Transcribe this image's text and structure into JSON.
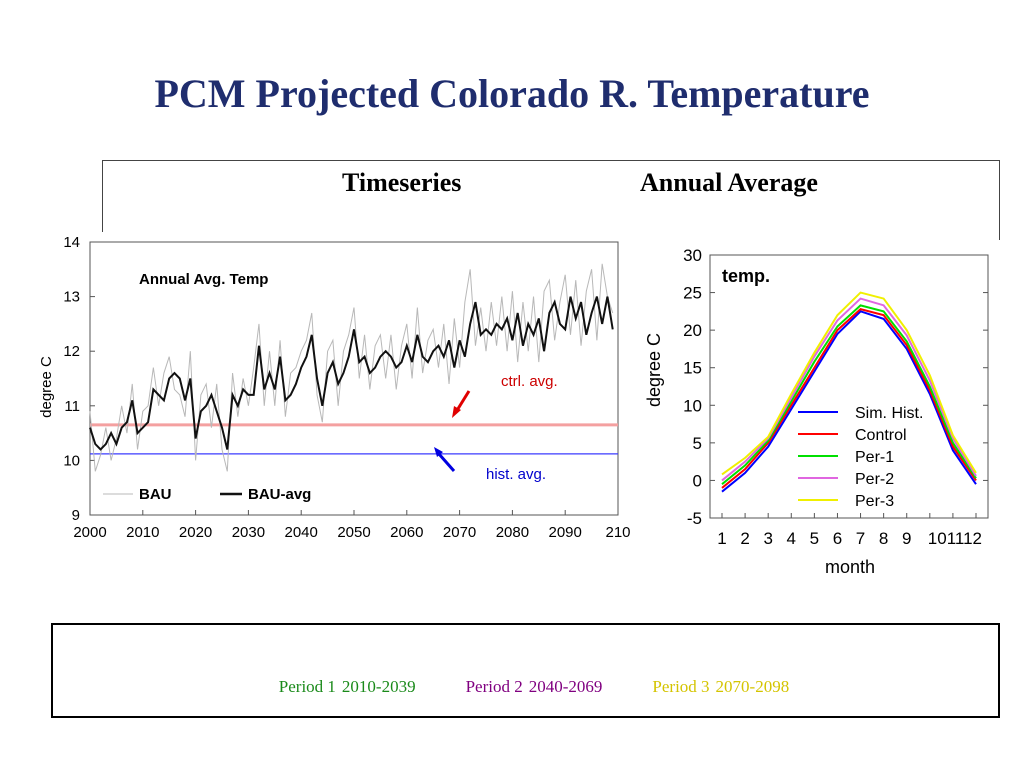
{
  "slide": {
    "title": "PCM Projected Colorado R. Temperature",
    "header_left": "Timeseries",
    "header_right": "Annual Average"
  },
  "colors": {
    "title": "#1f2d6e",
    "ctrl_line": "#f4a0a0",
    "hist_line": "#3b3bff",
    "period1": "#1a8a1a",
    "period2": "#800080",
    "period3": "#d4c400"
  },
  "footer": {
    "periods": [
      {
        "name": "Period 1",
        "range": "2010-2039",
        "color": "#1a8a1a"
      },
      {
        "name": "Period 2",
        "range": "2040-2069",
        "color": "#800080"
      },
      {
        "name": "Period 3",
        "range": "2070-2098",
        "color": "#d4c400"
      }
    ]
  },
  "chart_data": [
    {
      "type": "line",
      "title": "Annual Avg. Temp",
      "xlabel": "",
      "ylabel": "degree C",
      "xlim": [
        2000,
        2100
      ],
      "ylim": [
        9,
        14
      ],
      "x_ticks": [
        "2000",
        "2010",
        "2020",
        "2030",
        "2040",
        "2050",
        "2060",
        "2070",
        "2080",
        "2090",
        "210"
      ],
      "y_ticks": [
        "9",
        "10",
        "11",
        "12",
        "13",
        "14"
      ],
      "legend": [
        "BAU",
        "BAU-avg"
      ],
      "legend_position": "bottom-left",
      "annotations": [
        {
          "text": "ctrl. avg.",
          "color": "#cc0000"
        },
        {
          "text": "hist. avg.",
          "color": "#0000cc"
        }
      ],
      "reference_lines": [
        {
          "name": "ctrl. avg.",
          "y": 10.65,
          "color": "#f4a0a0"
        },
        {
          "name": "hist. avg.",
          "y": 10.12,
          "color": "#3b3bff"
        }
      ],
      "series": [
        {
          "name": "BAU-avg",
          "x": [
            2000,
            2001,
            2002,
            2003,
            2004,
            2005,
            2006,
            2007,
            2008,
            2009,
            2010,
            2011,
            2012,
            2013,
            2014,
            2015,
            2016,
            2017,
            2018,
            2019,
            2020,
            2021,
            2022,
            2023,
            2024,
            2025,
            2026,
            2027,
            2028,
            2029,
            2030,
            2031,
            2032,
            2033,
            2034,
            2035,
            2036,
            2037,
            2038,
            2039,
            2040,
            2041,
            2042,
            2043,
            2044,
            2045,
            2046,
            2047,
            2048,
            2049,
            2050,
            2051,
            2052,
            2053,
            2054,
            2055,
            2056,
            2057,
            2058,
            2059,
            2060,
            2061,
            2062,
            2063,
            2064,
            2065,
            2066,
            2067,
            2068,
            2069,
            2070,
            2071,
            2072,
            2073,
            2074,
            2075,
            2076,
            2077,
            2078,
            2079,
            2080,
            2081,
            2082,
            2083,
            2084,
            2085,
            2086,
            2087,
            2088,
            2089,
            2090,
            2091,
            2092,
            2093,
            2094,
            2095,
            2096,
            2097,
            2098,
            2099
          ],
          "values": [
            10.6,
            10.3,
            10.2,
            10.3,
            10.5,
            10.3,
            10.6,
            10.7,
            11.1,
            10.5,
            10.6,
            10.7,
            11.3,
            11.2,
            11.1,
            11.5,
            11.6,
            11.5,
            11.1,
            11.5,
            10.4,
            10.9,
            11.0,
            11.2,
            10.9,
            10.6,
            10.2,
            11.2,
            11.0,
            11.3,
            11.2,
            11.2,
            12.1,
            11.3,
            11.6,
            11.3,
            11.9,
            11.1,
            11.2,
            11.4,
            11.7,
            11.9,
            12.3,
            11.5,
            11.0,
            11.6,
            11.8,
            11.4,
            11.6,
            11.9,
            12.4,
            11.8,
            11.9,
            11.6,
            11.7,
            11.9,
            12.0,
            11.9,
            11.7,
            11.8,
            12.1,
            11.8,
            12.3,
            11.9,
            11.8,
            12.0,
            12.1,
            11.9,
            12.2,
            11.7,
            12.2,
            11.9,
            12.5,
            12.9,
            12.3,
            12.4,
            12.3,
            12.5,
            12.4,
            12.6,
            12.2,
            12.7,
            12.1,
            12.5,
            12.3,
            12.6,
            12.0,
            12.7,
            12.9,
            12.5,
            12.4,
            13.0,
            12.6,
            12.9,
            12.3,
            12.7,
            13.0,
            12.5,
            13.0,
            12.4
          ]
        },
        {
          "name": "BAU",
          "x": [
            2000,
            2001,
            2002,
            2003,
            2004,
            2005,
            2006,
            2007,
            2008,
            2009,
            2010,
            2011,
            2012,
            2013,
            2014,
            2015,
            2016,
            2017,
            2018,
            2019,
            2020,
            2021,
            2022,
            2023,
            2024,
            2025,
            2026,
            2027,
            2028,
            2029,
            2030,
            2031,
            2032,
            2033,
            2034,
            2035,
            2036,
            2037,
            2038,
            2039,
            2040,
            2041,
            2042,
            2043,
            2044,
            2045,
            2046,
            2047,
            2048,
            2049,
            2050,
            2051,
            2052,
            2053,
            2054,
            2055,
            2056,
            2057,
            2058,
            2059,
            2060,
            2061,
            2062,
            2063,
            2064,
            2065,
            2066,
            2067,
            2068,
            2069,
            2070,
            2071,
            2072,
            2073,
            2074,
            2075,
            2076,
            2077,
            2078,
            2079,
            2080,
            2081,
            2082,
            2083,
            2084,
            2085,
            2086,
            2087,
            2088,
            2089,
            2090,
            2091,
            2092,
            2093,
            2094,
            2095,
            2096,
            2097,
            2098,
            2099
          ],
          "values": [
            10.9,
            9.8,
            10.1,
            10.6,
            10.0,
            10.4,
            11.0,
            10.5,
            11.4,
            10.2,
            10.9,
            11.0,
            11.7,
            11.0,
            11.6,
            11.9,
            11.3,
            11.2,
            10.8,
            12.0,
            10.0,
            11.2,
            11.4,
            10.6,
            11.4,
            10.2,
            9.8,
            11.6,
            10.8,
            11.5,
            11.0,
            11.7,
            12.5,
            11.0,
            12.0,
            11.0,
            12.2,
            10.8,
            11.6,
            11.7,
            12.0,
            12.2,
            12.7,
            11.2,
            10.7,
            12.0,
            12.2,
            11.0,
            12.0,
            12.3,
            12.8,
            11.5,
            12.3,
            11.3,
            12.1,
            12.3,
            11.5,
            12.3,
            11.3,
            12.1,
            12.5,
            11.5,
            12.8,
            11.6,
            12.2,
            12.4,
            11.7,
            12.5,
            11.4,
            12.6,
            11.7,
            12.9,
            13.5,
            12.1,
            12.8,
            12.0,
            12.9,
            12.1,
            13.0,
            12.0,
            13.1,
            11.8,
            12.9,
            12.0,
            13.0,
            11.8,
            13.1,
            13.3,
            12.2,
            12.9,
            13.4,
            12.3,
            13.3,
            12.1,
            13.1,
            13.5,
            12.2,
            13.6,
            13.0,
            12.7
          ]
        }
      ]
    },
    {
      "type": "line",
      "title": "temp.",
      "xlabel": "month",
      "ylabel": "degree C",
      "xlim": [
        1,
        12
      ],
      "ylim": [
        -5,
        30
      ],
      "categories": [
        "1",
        "2",
        "3",
        "4",
        "5",
        "6",
        "7",
        "8",
        "9",
        "10",
        "11",
        "12"
      ],
      "x_ticks": [
        "1",
        "2",
        "3",
        "4",
        "5",
        "6",
        "7",
        "8",
        "9",
        "101112"
      ],
      "y_ticks": [
        "-5",
        "0",
        "5",
        "10",
        "15",
        "20",
        "25",
        "30"
      ],
      "legend_position": "bottom-right",
      "series": [
        {
          "name": "Sim. Hist.",
          "color": "#0000ff",
          "values": [
            -1.5,
            1.0,
            4.5,
            9.5,
            14.5,
            19.5,
            22.5,
            21.5,
            17.5,
            11.5,
            4.0,
            -0.5
          ]
        },
        {
          "name": "Control",
          "color": "#ff0000",
          "values": [
            -1.0,
            1.5,
            5.0,
            10.0,
            15.0,
            20.0,
            22.8,
            22.0,
            18.0,
            12.0,
            4.5,
            0.0
          ]
        },
        {
          "name": "Per-1",
          "color": "#00e000",
          "values": [
            -0.5,
            2.0,
            5.3,
            10.5,
            15.8,
            20.5,
            23.3,
            22.5,
            18.5,
            12.5,
            5.0,
            0.3
          ]
        },
        {
          "name": "Per-2",
          "color": "#e066e0",
          "values": [
            0.0,
            2.5,
            5.6,
            11.0,
            16.5,
            21.3,
            24.2,
            23.3,
            19.3,
            13.3,
            5.6,
            0.6
          ]
        },
        {
          "name": "Per-3",
          "color": "#f0f000",
          "values": [
            0.8,
            3.0,
            5.8,
            11.5,
            17.0,
            22.0,
            25.0,
            24.2,
            20.0,
            14.0,
            6.0,
            1.0
          ]
        }
      ]
    }
  ]
}
